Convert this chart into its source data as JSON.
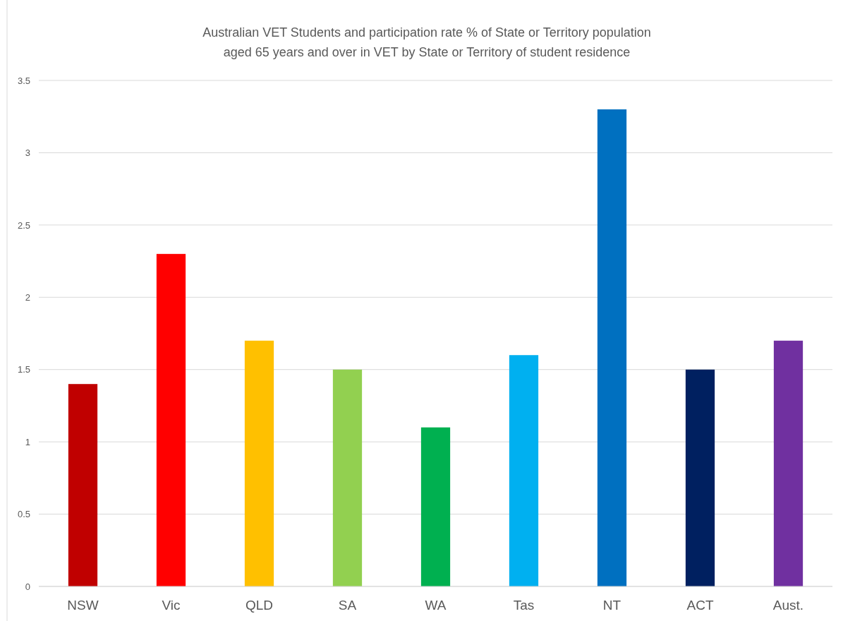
{
  "chart_data": {
    "type": "bar",
    "title": "Australian VET Students and participation rate % of State or Territory population aged 65 years and over in VET by State or Territory of student residence",
    "categories": [
      "NSW",
      "Vic",
      "QLD",
      "SA",
      "WA",
      "Tas",
      "NT",
      "ACT",
      "Aust."
    ],
    "values": [
      1.4,
      2.3,
      1.7,
      1.5,
      1.1,
      1.6,
      3.3,
      1.5,
      1.7
    ],
    "colors": [
      "#c00000",
      "#ff0000",
      "#ffc000",
      "#92d050",
      "#00b050",
      "#00b0f0",
      "#0070c0",
      "#002060",
      "#7030a0"
    ],
    "ylim": [
      0,
      3.5
    ],
    "yticks": [
      0,
      0.5,
      1,
      1.5,
      2,
      2.5,
      3,
      3.5
    ],
    "grid": "y"
  }
}
